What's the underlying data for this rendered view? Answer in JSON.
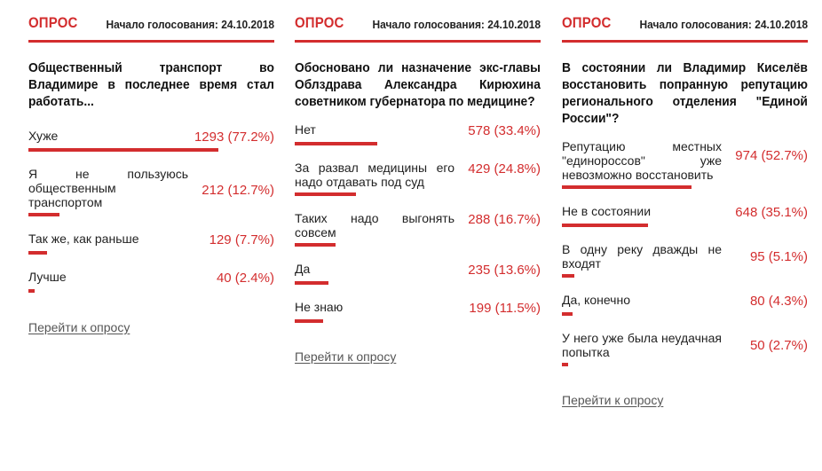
{
  "colors": {
    "accent": "#d32d2e"
  },
  "polls": [
    {
      "label": "ОПРОС",
      "date": "Начало голосования: 24.10.2018",
      "question": "Общественный транспорт во Владимире в последнее время стал работать...",
      "options": [
        {
          "label": "Хуже",
          "value": "1293 (77.2%)",
          "percent": 77.2
        },
        {
          "label": "Я не пользуюсь общественным транспортом",
          "value": "212 (12.7%)",
          "percent": 12.7
        },
        {
          "label": "Так же, как раньше",
          "value": "129 (7.7%)",
          "percent": 7.7
        },
        {
          "label": "Лучше",
          "value": "40 (2.4%)",
          "percent": 2.4
        }
      ],
      "link": "Перейти к опросу"
    },
    {
      "label": "ОПРОС",
      "date": "Начало голосования: 24.10.2018",
      "question": "Обосновано ли назначение экс-главы Облздрава Александра Кирюхина советником губернатора по медицине?",
      "options": [
        {
          "label": "Нет",
          "value": "578 (33.4%)",
          "percent": 33.4
        },
        {
          "label": "За развал медицины его надо отдавать под суд",
          "value": "429 (24.8%)",
          "percent": 24.8
        },
        {
          "label": "Таких надо выгонять совсем",
          "value": "288 (16.7%)",
          "percent": 16.7
        },
        {
          "label": "Да",
          "value": "235 (13.6%)",
          "percent": 13.6
        },
        {
          "label": "Не знаю",
          "value": "199 (11.5%)",
          "percent": 11.5
        }
      ],
      "link": "Перейти к опросу"
    },
    {
      "label": "ОПРОС",
      "date": "Начало голосования: 24.10.2018",
      "question": "В состоянии ли Владимир Киселёв восстановить попранную репутацию регионального отделения \"Единой России\"?",
      "options": [
        {
          "label": "Репутацию местных \"единороссов\" уже невозможно восстановить",
          "value": "974 (52.7%)",
          "percent": 52.7
        },
        {
          "label": "Не в состоянии",
          "value": "648 (35.1%)",
          "percent": 35.1
        },
        {
          "label": "В одну реку дважды не входят",
          "value": "95 (5.1%)",
          "percent": 5.1
        },
        {
          "label": "Да, конечно",
          "value": "80 (4.3%)",
          "percent": 4.3
        },
        {
          "label": "У него уже была неудачная попытка",
          "value": "50 (2.7%)",
          "percent": 2.7
        }
      ],
      "link": "Перейти к опросу"
    }
  ]
}
